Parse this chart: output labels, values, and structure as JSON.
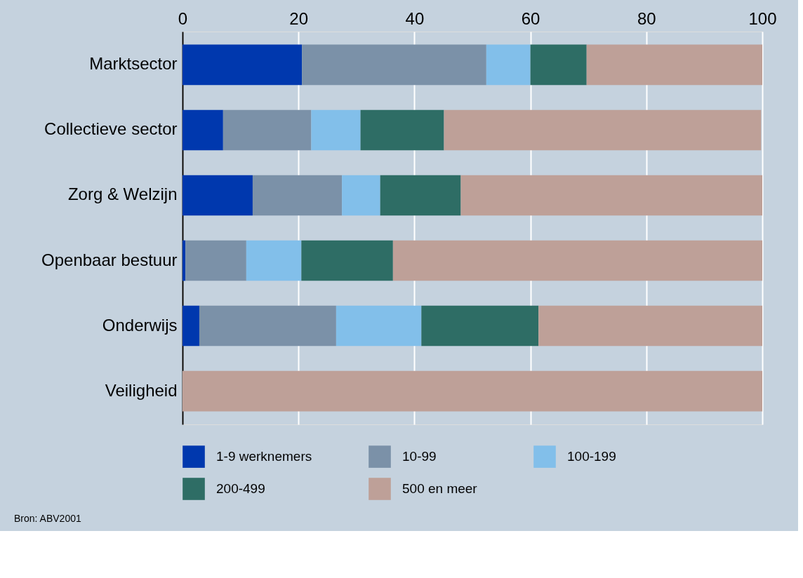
{
  "chart_data": {
    "type": "bar",
    "orientation": "horizontal",
    "stacked": true,
    "categories": [
      "Marktsector",
      "Collectieve sector",
      "Zorg & Welzijn",
      "Openbaar bestuur",
      "Onderwijs",
      "Veiligheid"
    ],
    "series": [
      {
        "name": "1-9 werknemers",
        "color": "#0038ae",
        "values": [
          20.6,
          7.0,
          12.1,
          0.5,
          2.9,
          0
        ]
      },
      {
        "name": "10-99",
        "color": "#7b91a8",
        "values": [
          31.8,
          15.2,
          15.4,
          10.5,
          23.6,
          0
        ]
      },
      {
        "name": "100-199",
        "color": "#82bfea",
        "values": [
          7.6,
          8.5,
          6.6,
          9.5,
          14.7,
          0
        ]
      },
      {
        "name": "200-499",
        "color": "#2e6d65",
        "values": [
          9.7,
          14.4,
          13.9,
          15.8,
          20.2,
          0
        ]
      },
      {
        "name": "500 en meer",
        "color": "#bea098",
        "values": [
          30.3,
          54.7,
          52.0,
          63.7,
          38.6,
          100
        ]
      }
    ],
    "xlim": [
      0,
      100
    ],
    "xticks": [
      0,
      20,
      40,
      60,
      80,
      100
    ],
    "grid": "x",
    "legend": "bottom",
    "annotations": [
      "Bron: ABV2001"
    ]
  }
}
